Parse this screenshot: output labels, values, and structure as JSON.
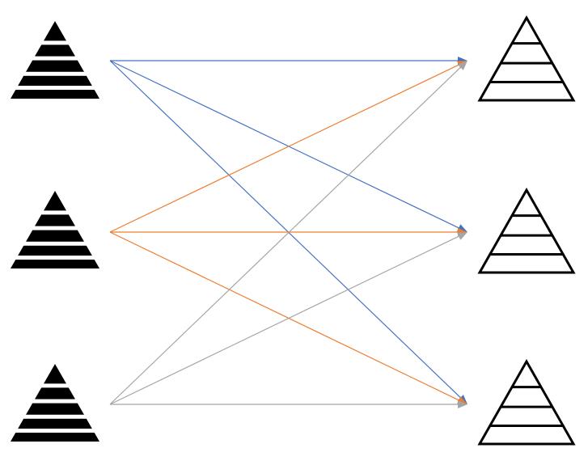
{
  "diagram": {
    "type": "bipartite-connection-diagram",
    "sources": [
      {
        "id": "source-1",
        "shape": "striped-pyramid",
        "fill": "#000000"
      },
      {
        "id": "source-2",
        "shape": "striped-pyramid",
        "fill": "#000000"
      },
      {
        "id": "source-3",
        "shape": "striped-pyramid",
        "fill": "#000000"
      }
    ],
    "targets": [
      {
        "id": "target-1",
        "shape": "outlined-pyramid",
        "stroke": "#000000"
      },
      {
        "id": "target-2",
        "shape": "outlined-pyramid",
        "stroke": "#000000"
      },
      {
        "id": "target-3",
        "shape": "outlined-pyramid",
        "stroke": "#000000"
      }
    ],
    "connections": [
      {
        "from": "source-1",
        "to": "target-1",
        "color": "#4472C4"
      },
      {
        "from": "source-1",
        "to": "target-2",
        "color": "#4472C4"
      },
      {
        "from": "source-1",
        "to": "target-3",
        "color": "#4472C4"
      },
      {
        "from": "source-2",
        "to": "target-1",
        "color": "#ED7D31"
      },
      {
        "from": "source-2",
        "to": "target-2",
        "color": "#ED7D31"
      },
      {
        "from": "source-2",
        "to": "target-3",
        "color": "#ED7D31"
      },
      {
        "from": "source-3",
        "to": "target-1",
        "color": "#A5A5A5"
      },
      {
        "from": "source-3",
        "to": "target-2",
        "color": "#A5A5A5"
      },
      {
        "from": "source-3",
        "to": "target-3",
        "color": "#A5A5A5"
      }
    ]
  }
}
